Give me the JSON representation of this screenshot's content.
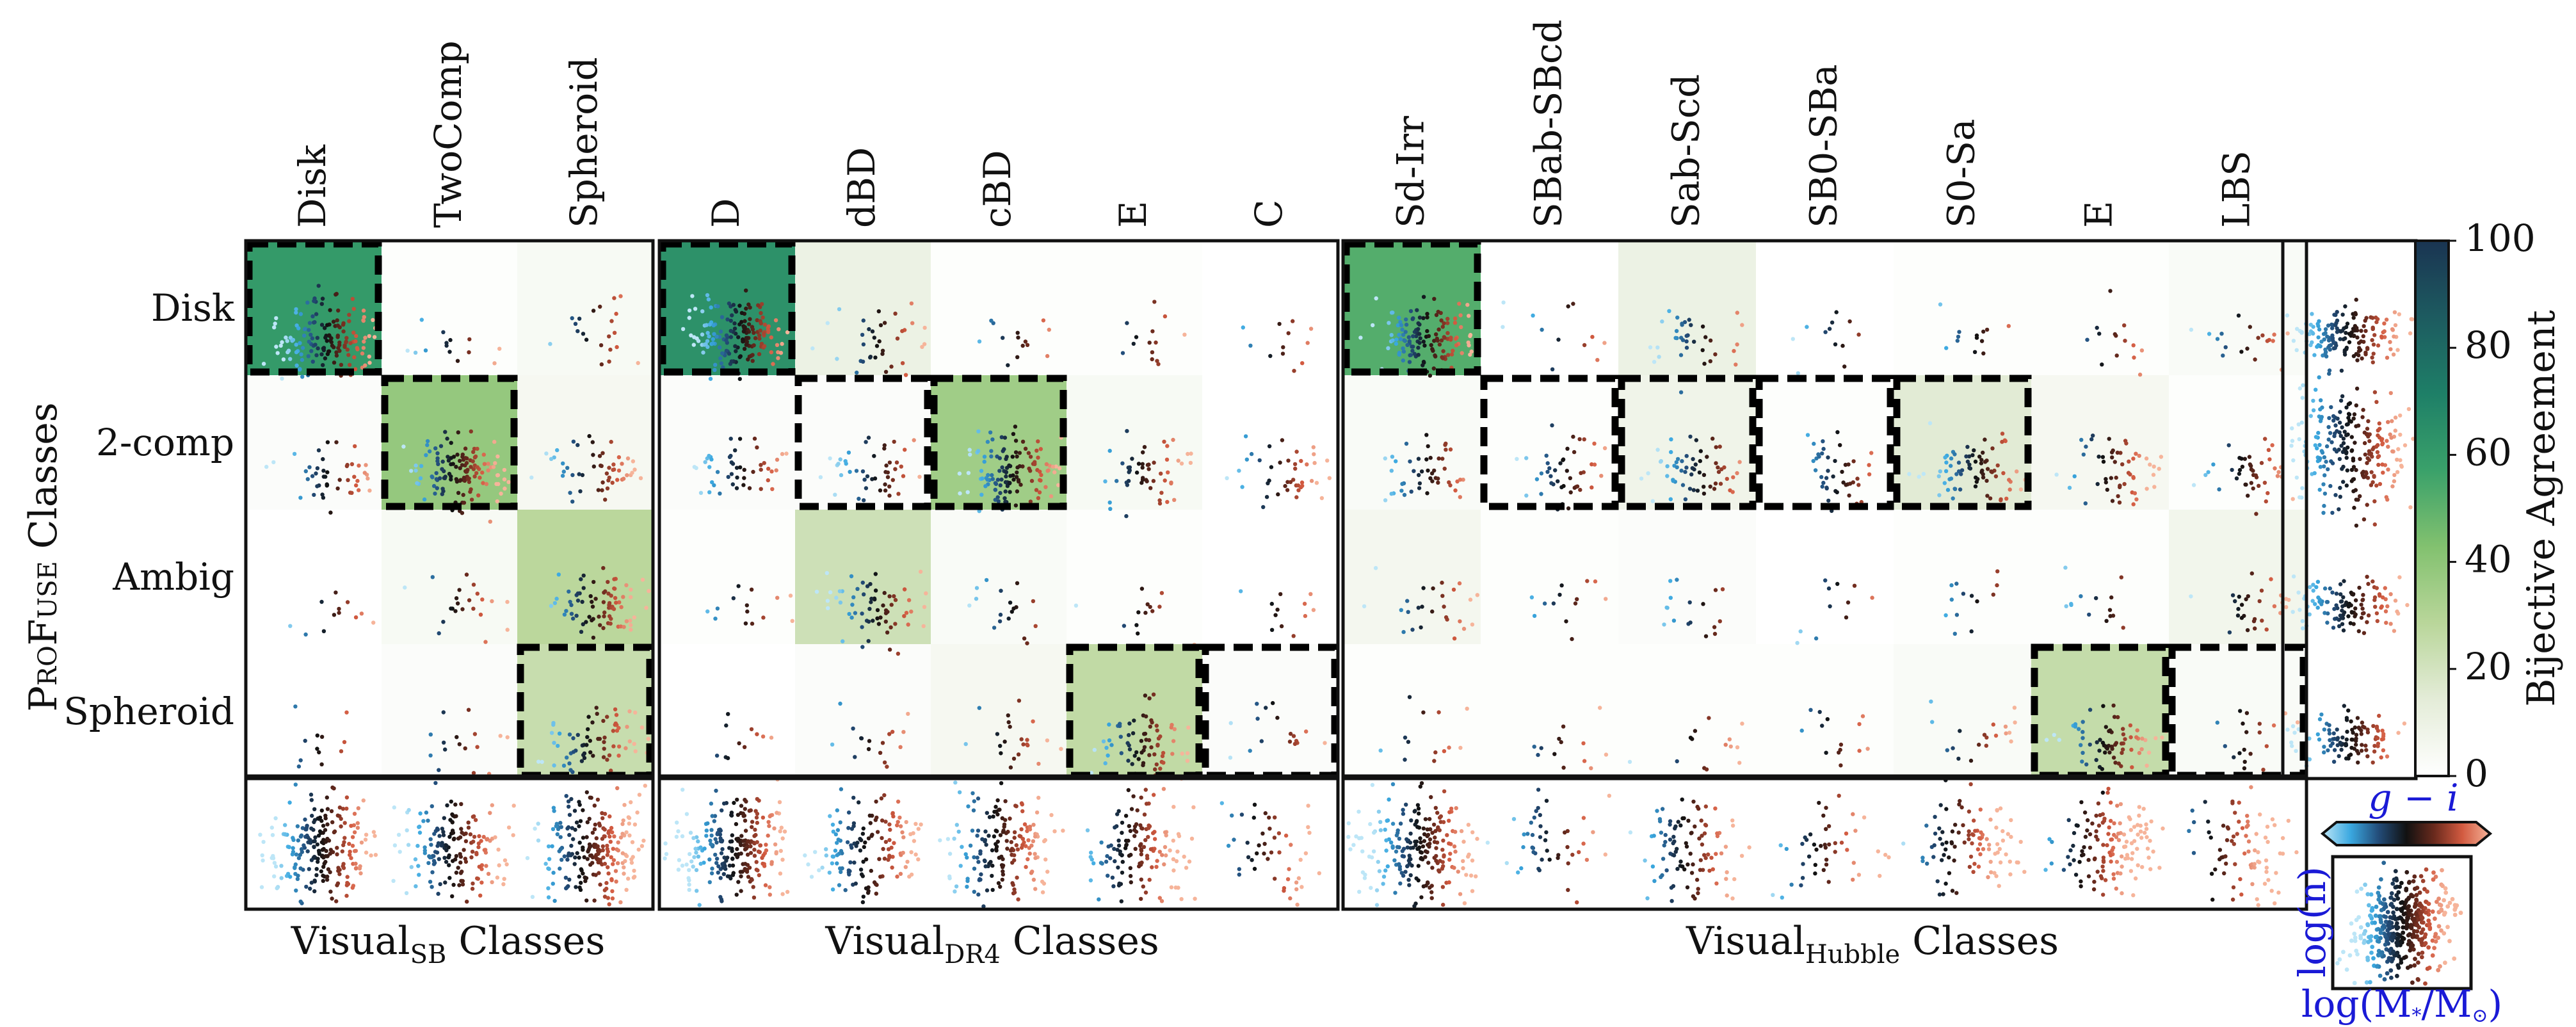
{
  "chart_data": [
    {
      "type": "heatmap",
      "panel": "VisualSB",
      "xlabel": "Visual",
      "xlabel_sub": "SB",
      "xlabel_suffix": " Classes",
      "categories": [
        "Disk",
        "TwoComp",
        "Spheroid"
      ],
      "rows": [
        "Disk",
        "2-comp",
        "Ambig",
        "Spheroid"
      ],
      "values": [
        [
          60,
          1,
          4
        ],
        [
          2,
          38,
          5
        ],
        [
          0,
          4,
          28
        ],
        [
          0,
          2,
          24
        ]
      ],
      "highlight": [
        [
          0,
          0
        ],
        [
          1,
          1
        ],
        [
          3,
          2
        ]
      ]
    },
    {
      "type": "heatmap",
      "panel": "VisualDR4",
      "xlabel": "Visual",
      "xlabel_sub": "DR4",
      "xlabel_suffix": " Classes",
      "categories": [
        "D",
        "dBD",
        "cBD",
        "E",
        "C"
      ],
      "rows": [
        "Disk",
        "2-comp",
        "Ambig",
        "Spheroid"
      ],
      "values": [
        [
          64,
          10,
          1,
          1,
          0
        ],
        [
          2,
          2,
          35,
          4,
          0
        ],
        [
          1,
          22,
          3,
          1,
          0
        ],
        [
          0,
          2,
          5,
          26,
          2
        ]
      ],
      "highlight": [
        [
          0,
          0
        ],
        [
          1,
          1
        ],
        [
          1,
          2
        ],
        [
          3,
          3
        ],
        [
          3,
          4
        ]
      ]
    },
    {
      "type": "heatmap",
      "panel": "VisualHubble",
      "xlabel": "Visual",
      "xlabel_sub": "Hubble",
      "xlabel_suffix": " Classes",
      "categories": [
        "Sd-Irr",
        "SBab-SBcd",
        "Sab-Scd",
        "SB0-SBa",
        "S0-Sa",
        "E",
        "LBS"
      ],
      "rows": [
        "Disk",
        "2-comp",
        "Ambig",
        "Spheroid"
      ],
      "values": [
        [
          52,
          0,
          10,
          0,
          1,
          1,
          3
        ],
        [
          3,
          1,
          8,
          1,
          15,
          5,
          1
        ],
        [
          6,
          1,
          2,
          0,
          1,
          1,
          7
        ],
        [
          1,
          1,
          1,
          1,
          3,
          25,
          3
        ]
      ],
      "highlight": [
        [
          0,
          0
        ],
        [
          1,
          1
        ],
        [
          1,
          2
        ],
        [
          1,
          3
        ],
        [
          1,
          4
        ],
        [
          3,
          5
        ],
        [
          3,
          6
        ]
      ]
    }
  ],
  "ylabel": "ProFuse Classes",
  "ylabel_parts": {
    "p1": "P",
    "p2": "RO",
    "p3": "F",
    "p4": "USE",
    "p5": " Classes"
  },
  "colorbar": {
    "label": "Bijective Agreement",
    "range": [
      0,
      100
    ],
    "ticks": [
      "0",
      "20",
      "40",
      "60",
      "80",
      "100"
    ],
    "colormap": [
      "#ffffff",
      "#e4ecd8",
      "#b9d69a",
      "#82c16f",
      "#3aa16a",
      "#1e7f67",
      "#1d5b60",
      "#1a3452"
    ]
  },
  "inset": {
    "color_label": "g − i",
    "xlabel": "log(M",
    "xlabel_sub": "*",
    "xlabel_suffix": "/M",
    "xlabel_sun": "⊙",
    "xlabel_end": ")",
    "ylabel": "log(n)",
    "colormap": [
      "#bde6f7",
      "#3aa8e0",
      "#234d7a",
      "#111111",
      "#6a2a1d",
      "#d25a40",
      "#f6b49a"
    ]
  }
}
